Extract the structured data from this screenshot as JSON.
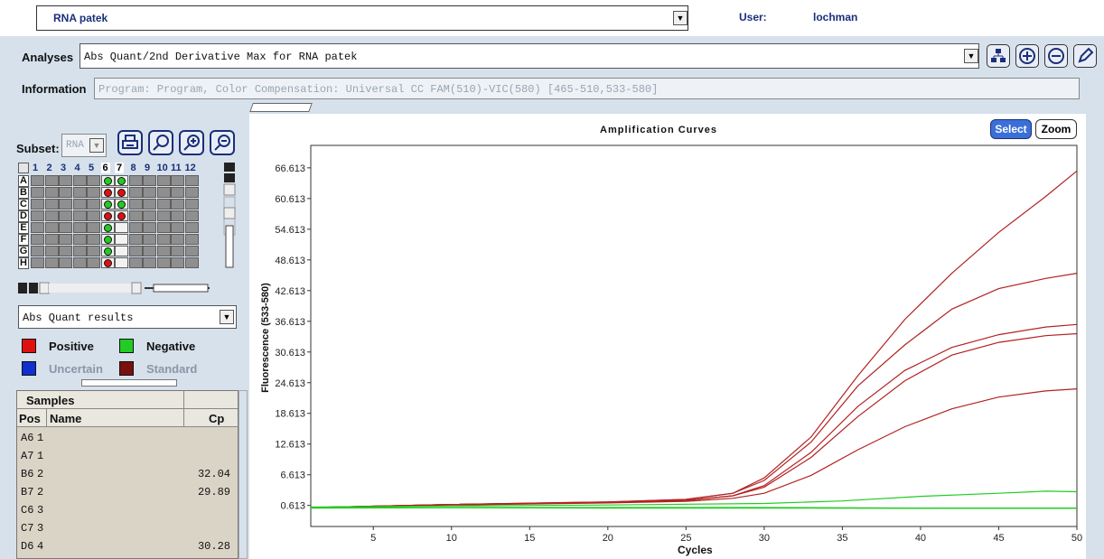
{
  "top": {
    "run_name": "RNA patek",
    "user_label": "User:",
    "user_value": "lochman"
  },
  "analyses": {
    "label": "Analyses",
    "value": "Abs Quant/2nd Derivative Max for RNA patek"
  },
  "information": {
    "label": "Information",
    "value": "Program: Program, Color Compensation: Universal CC FAM(510)-VIC(580) [465-510,533-580]"
  },
  "subset": {
    "label": "Subset:",
    "value": "RNA"
  },
  "plate": {
    "columns": [
      "1",
      "2",
      "3",
      "4",
      "5",
      "6",
      "7",
      "8",
      "9",
      "10",
      "11",
      "12"
    ],
    "rows": [
      "A",
      "B",
      "C",
      "D",
      "E",
      "F",
      "G",
      "H"
    ],
    "wells": [
      {
        "row": "A",
        "col": "6",
        "status": "negative"
      },
      {
        "row": "A",
        "col": "7",
        "status": "negative"
      },
      {
        "row": "B",
        "col": "6",
        "status": "positive"
      },
      {
        "row": "B",
        "col": "7",
        "status": "positive"
      },
      {
        "row": "C",
        "col": "6",
        "status": "negative"
      },
      {
        "row": "C",
        "col": "7",
        "status": "negative"
      },
      {
        "row": "D",
        "col": "6",
        "status": "positive"
      },
      {
        "row": "D",
        "col": "7",
        "status": "positive"
      },
      {
        "row": "E",
        "col": "6",
        "status": "negative"
      },
      {
        "row": "F",
        "col": "6",
        "status": "negative"
      },
      {
        "row": "G",
        "col": "6",
        "status": "negative"
      },
      {
        "row": "H",
        "col": "6",
        "status": "positive"
      }
    ]
  },
  "results_view": "Abs Quant results",
  "legend": {
    "positive": "Positive",
    "negative": "Negative",
    "uncertain": "Uncertain",
    "standard": "Standard"
  },
  "samples": {
    "title": "Samples",
    "headers": {
      "pos": "Pos",
      "name": "Name",
      "cp": "Cp"
    },
    "rows": [
      {
        "pos": "A6",
        "name": "1",
        "cp": ""
      },
      {
        "pos": "A7",
        "name": "1",
        "cp": ""
      },
      {
        "pos": "B6",
        "name": "2",
        "cp": "32.04"
      },
      {
        "pos": "B7",
        "name": "2",
        "cp": "29.89"
      },
      {
        "pos": "C6",
        "name": "3",
        "cp": ""
      },
      {
        "pos": "C7",
        "name": "3",
        "cp": ""
      },
      {
        "pos": "D6",
        "name": "4",
        "cp": "30.28"
      }
    ]
  },
  "chart_buttons": {
    "select": "Select",
    "zoom": "Zoom"
  },
  "colors": {
    "positive": "#e01010",
    "negative": "#22cc22",
    "uncertain": "#1030d0",
    "standard": "#7a0f0f",
    "accent": "#1a2f7a"
  },
  "chart_data": {
    "type": "line",
    "title": "Amplification Curves",
    "xlabel": "Cycles",
    "ylabel": "Fluorescence (533-580)",
    "xlim": [
      1,
      50
    ],
    "ylim": [
      -3.5,
      71
    ],
    "xticks": [
      5,
      10,
      15,
      20,
      25,
      30,
      35,
      40,
      45,
      50
    ],
    "yticks": [
      0.613,
      6.613,
      12.613,
      18.613,
      24.613,
      30.613,
      36.613,
      42.613,
      48.613,
      54.613,
      60.613,
      66.613
    ],
    "ytick_labels": [
      "0.613",
      "6.613",
      "12.613",
      "18.613",
      "24.613",
      "30.613",
      "36.613",
      "42.613",
      "48.613",
      "54.613",
      "60.613",
      "66.613"
    ],
    "grid": false,
    "series": [
      {
        "color": "#b22222",
        "points": [
          [
            1,
            0.2
          ],
          [
            10,
            0.8
          ],
          [
            20,
            1.3
          ],
          [
            25,
            1.8
          ],
          [
            28,
            3
          ],
          [
            30,
            6
          ],
          [
            33,
            14
          ],
          [
            36,
            26
          ],
          [
            39,
            37
          ],
          [
            42,
            46
          ],
          [
            45,
            54
          ],
          [
            48,
            61
          ],
          [
            50,
            66
          ]
        ]
      },
      {
        "color": "#b22222",
        "points": [
          [
            1,
            0.2
          ],
          [
            10,
            0.8
          ],
          [
            20,
            1.3
          ],
          [
            25,
            1.8
          ],
          [
            28,
            3
          ],
          [
            30,
            5.5
          ],
          [
            33,
            13
          ],
          [
            36,
            24
          ],
          [
            39,
            32
          ],
          [
            42,
            39
          ],
          [
            45,
            43
          ],
          [
            48,
            45
          ],
          [
            50,
            46
          ]
        ]
      },
      {
        "color": "#b22222",
        "points": [
          [
            1,
            0.2
          ],
          [
            10,
            0.8
          ],
          [
            20,
            1.2
          ],
          [
            25,
            1.6
          ],
          [
            28,
            2.5
          ],
          [
            30,
            4.5
          ],
          [
            33,
            11
          ],
          [
            36,
            20
          ],
          [
            39,
            27
          ],
          [
            42,
            31.5
          ],
          [
            45,
            34
          ],
          [
            48,
            35.5
          ],
          [
            50,
            36
          ]
        ]
      },
      {
        "color": "#b22222",
        "points": [
          [
            1,
            0.2
          ],
          [
            10,
            0.8
          ],
          [
            20,
            1.2
          ],
          [
            25,
            1.6
          ],
          [
            28,
            2.5
          ],
          [
            30,
            4.2
          ],
          [
            33,
            10
          ],
          [
            36,
            18
          ],
          [
            39,
            25
          ],
          [
            42,
            30
          ],
          [
            45,
            32.5
          ],
          [
            48,
            33.8
          ],
          [
            50,
            34.2
          ]
        ]
      },
      {
        "color": "#b22222",
        "points": [
          [
            1,
            0.2
          ],
          [
            10,
            0.7
          ],
          [
            20,
            1.1
          ],
          [
            25,
            1.4
          ],
          [
            28,
            2
          ],
          [
            30,
            3
          ],
          [
            33,
            6.5
          ],
          [
            36,
            11.5
          ],
          [
            39,
            16
          ],
          [
            42,
            19.5
          ],
          [
            45,
            21.8
          ],
          [
            48,
            23
          ],
          [
            50,
            23.4
          ]
        ]
      },
      {
        "color": "#22cc22",
        "points": [
          [
            1,
            0.3
          ],
          [
            10,
            0.5
          ],
          [
            20,
            0.7
          ],
          [
            30,
            1
          ],
          [
            35,
            1.5
          ],
          [
            40,
            2.4
          ],
          [
            45,
            3
          ],
          [
            48,
            3.4
          ],
          [
            50,
            3.3
          ]
        ]
      },
      {
        "color": "#22cc22",
        "points": [
          [
            1,
            0.2
          ],
          [
            10,
            0.2
          ],
          [
            20,
            0.2
          ],
          [
            30,
            0.2
          ],
          [
            40,
            0.1
          ],
          [
            50,
            0.1
          ]
        ]
      },
      {
        "color": "#22cc22",
        "points": [
          [
            1,
            0.1
          ],
          [
            10,
            0.15
          ],
          [
            20,
            0.1
          ],
          [
            30,
            0.1
          ],
          [
            40,
            0.05
          ],
          [
            50,
            0.05
          ]
        ]
      }
    ]
  }
}
